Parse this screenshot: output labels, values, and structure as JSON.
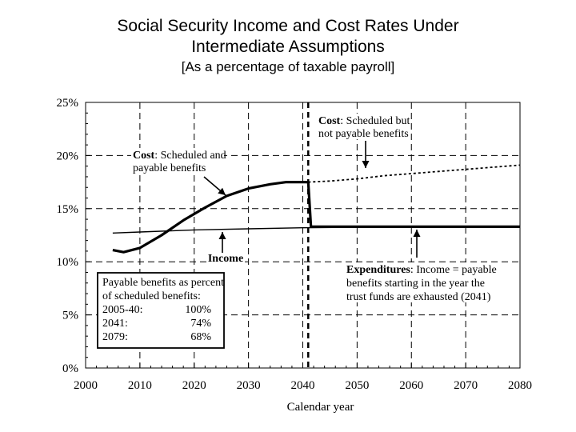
{
  "chart_data": {
    "type": "line",
    "title_line1": "Social Security Income and Cost Rates Under",
    "title_line2": "Intermediate Assumptions",
    "subtitle": "[As a percentage of taxable payroll]",
    "xlabel": "Calendar year",
    "ylabel": "",
    "xlim": [
      2000,
      2080
    ],
    "ylim": [
      0,
      25
    ],
    "x_ticks": [
      2000,
      2010,
      2020,
      2030,
      2040,
      2050,
      2060,
      2070,
      2080
    ],
    "y_ticks": [
      {
        "value": 0,
        "label": "0%"
      },
      {
        "value": 5,
        "label": "5%"
      },
      {
        "value": 10,
        "label": "10%"
      },
      {
        "value": 15,
        "label": "15%"
      },
      {
        "value": 20,
        "label": "20%"
      },
      {
        "value": 25,
        "label": "25%"
      }
    ],
    "grid": "dashed",
    "series": [
      {
        "name": "Income",
        "style": "thin",
        "x": [
          2005,
          2010,
          2020,
          2030,
          2040,
          2050,
          2060,
          2070,
          2080
        ],
        "y": [
          12.7,
          12.8,
          13.0,
          13.1,
          13.2,
          13.25,
          13.3,
          13.3,
          13.3
        ]
      },
      {
        "name": "Cost: Scheduled and payable benefits",
        "style": "thick",
        "x": [
          2005,
          2007,
          2010,
          2014,
          2018,
          2022,
          2026,
          2030,
          2034,
          2037,
          2041,
          2041.5,
          2050,
          2060,
          2070,
          2080
        ],
        "y": [
          11.1,
          10.9,
          11.3,
          12.5,
          13.9,
          15.1,
          16.2,
          16.9,
          17.3,
          17.5,
          17.5,
          13.3,
          13.3,
          13.3,
          13.3,
          13.3
        ]
      },
      {
        "name": "Cost: Scheduled but not payable benefits",
        "style": "dotted",
        "x": [
          2041,
          2045,
          2050,
          2055,
          2060,
          2065,
          2070,
          2075,
          2080
        ],
        "y": [
          17.5,
          17.6,
          17.8,
          18.1,
          18.3,
          18.5,
          18.7,
          18.9,
          19.1
        ]
      }
    ],
    "marker_year": 2041,
    "annotations": {
      "cost_payable_bold": "Cost",
      "cost_payable_rest": ": Scheduled and",
      "cost_payable_line2": "payable benefits",
      "cost_notpayable_bold": "Cost",
      "cost_notpayable_rest": ": Scheduled but",
      "cost_notpayable_line2": "not payable benefits",
      "income": "Income",
      "expenditures_bold": "Expenditures",
      "expenditures_rest": ": Income = payable",
      "expenditures_line2": "benefits starting in the year the",
      "expenditures_line3": "trust funds are exhausted (2041)"
    },
    "legend_box": {
      "heading_line1": "Payable benefits as percent",
      "heading_line2": "of scheduled benefits:",
      "rows": [
        {
          "period": "2005-40:",
          "value": "100%"
        },
        {
          "period": "2041:",
          "value": "74%"
        },
        {
          "period": "2079:",
          "value": "68%"
        }
      ]
    }
  }
}
